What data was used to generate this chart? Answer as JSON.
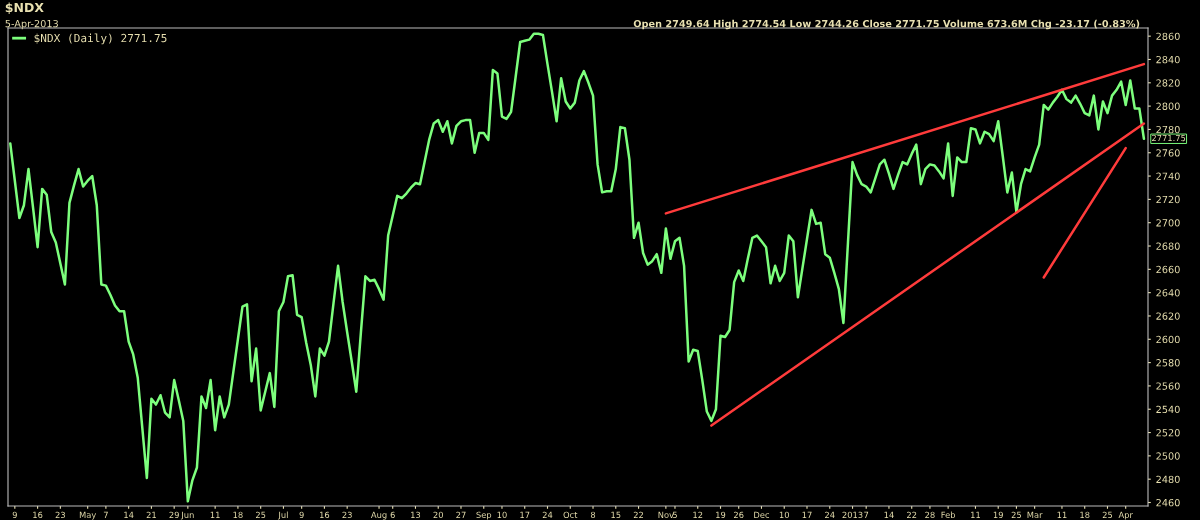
{
  "chart_data": {
    "type": "line",
    "title": "$NDX",
    "subtitle": "5-Apr-2013",
    "annotations": [
      "Open 2749.64 High 2774.54 Low 2744.26 Close 2771.75 Volume 673.6M Chg -23.17 (-0.83%)",
      "2771.75"
    ],
    "ylim": [
      2457,
      2867
    ],
    "yticks": [
      2460,
      2480,
      2500,
      2520,
      2540,
      2560,
      2580,
      2600,
      2620,
      2640,
      2660,
      2680,
      2700,
      2720,
      2740,
      2760,
      2780,
      2800,
      2820,
      2840,
      2860
    ],
    "grid": false,
    "legend": "top left",
    "categories": [
      null,
      "9",
      null,
      null,
      null,
      null,
      "16",
      null,
      null,
      null,
      null,
      "23",
      null,
      null,
      null,
      null,
      null,
      "May",
      null,
      null,
      null,
      "7",
      null,
      null,
      null,
      null,
      "14",
      null,
      null,
      null,
      null,
      "21",
      null,
      null,
      null,
      null,
      "29",
      null,
      null,
      "Jun",
      null,
      null,
      null,
      null,
      null,
      "11",
      null,
      null,
      null,
      null,
      "18",
      null,
      null,
      null,
      null,
      "25",
      null,
      null,
      null,
      null,
      "Jul",
      null,
      null,
      null,
      "9",
      null,
      null,
      null,
      null,
      "16",
      null,
      null,
      null,
      null,
      "23",
      null,
      null,
      null,
      null,
      null,
      null,
      "Aug",
      null,
      null,
      "6",
      null,
      null,
      null,
      null,
      "13",
      null,
      null,
      null,
      null,
      "20",
      null,
      null,
      null,
      null,
      "27",
      null,
      null,
      null,
      null,
      "Sep",
      null,
      null,
      null,
      "10",
      null,
      null,
      null,
      null,
      "17",
      null,
      null,
      null,
      null,
      "24",
      null,
      null,
      null,
      null,
      "Oct",
      null,
      null,
      null,
      null,
      "8",
      null,
      null,
      null,
      null,
      "15",
      null,
      null,
      null,
      null,
      "22",
      null,
      null,
      null,
      null,
      null,
      "Nov",
      null,
      "5",
      null,
      null,
      null,
      null,
      "12",
      null,
      null,
      null,
      null,
      "19",
      null,
      null,
      null,
      "26",
      null,
      null,
      null,
      null,
      "Dec",
      null,
      null,
      null,
      null,
      "10",
      null,
      null,
      null,
      null,
      "17",
      null,
      null,
      null,
      null,
      "24",
      null,
      null,
      null,
      null,
      "2013",
      null,
      null,
      "7",
      null,
      null,
      null,
      null,
      "14",
      null,
      null,
      null,
      null,
      "22",
      null,
      null,
      null,
      "28",
      null,
      null,
      null,
      "Feb",
      null,
      null,
      null,
      null,
      null,
      "11",
      null,
      null,
      null,
      null,
      "19",
      null,
      null,
      null,
      "25",
      null,
      null,
      null,
      "Mar",
      null,
      null,
      null,
      null,
      null,
      "11",
      null,
      null,
      null,
      null,
      "18",
      null,
      null,
      null,
      null,
      "25",
      null,
      null,
      null,
      "Apr",
      null,
      null,
      null,
      null
    ],
    "series": [
      {
        "name": "$NDX (Daily) 2771.75",
        "color": "#7dff7d",
        "values": [
          2768,
          2736,
          2704,
          2715,
          2746,
          2713,
          2679,
          2729,
          2724,
          2692,
          2683,
          2665,
          2647,
          2717,
          2732,
          2746,
          2731,
          2736,
          2740,
          2715,
          2647,
          2646,
          2638,
          2629,
          2624,
          2624,
          2598,
          2587,
          2567,
          2524,
          2481,
          2549,
          2544,
          2552,
          2537,
          2533,
          2565,
          2548,
          2530,
          2461,
          2479,
          2490,
          2551,
          2541,
          2565,
          2522,
          2551,
          2533,
          2544,
          2572,
          2600,
          2628,
          2630,
          2564,
          2592,
          2539,
          2555,
          2571,
          2542,
          2624,
          2632,
          2654,
          2655,
          2621,
          2619,
          2597,
          2578,
          2551,
          2592,
          2586,
          2598,
          2631,
          2663,
          2632,
          2606,
          2581,
          2555,
          2605,
          2654,
          2650,
          2651,
          2643,
          2634,
          2689,
          2706,
          2723,
          2721,
          2725,
          2730,
          2734,
          2733,
          2752,
          2771,
          2785,
          2788,
          2778,
          2787,
          2768,
          2783,
          2787,
          2788,
          2788,
          2760,
          2777,
          2777,
          2771,
          2831,
          2828,
          2791,
          2789,
          2795,
          2825,
          2855,
          2856,
          2857,
          2862,
          2862,
          2861,
          2836,
          2812,
          2787,
          2824,
          2804,
          2798,
          2803,
          2822,
          2830,
          2820,
          2809,
          2750,
          2726,
          2727,
          2727,
          2746,
          2782,
          2781,
          2754,
          2687,
          2700,
          2674,
          2664,
          2667,
          2673,
          2657,
          2695,
          2669,
          2684,
          2687,
          2663,
          2581,
          2591,
          2590,
          2565,
          2538,
          2530,
          2540,
          2603,
          2602,
          2608,
          2649,
          2659,
          2650,
          2669,
          2687,
          2689,
          2684,
          2679,
          2648,
          2663,
          2650,
          2657,
          2689,
          2684,
          2636,
          2661,
          2686,
          2711,
          2699,
          2700,
          2673,
          2670,
          2657,
          2643,
          2614,
          2683,
          2752,
          2741,
          2733,
          2731,
          2726,
          2738,
          2750,
          2754,
          2742,
          2729,
          2741,
          2752,
          2750,
          2759,
          2767,
          2733,
          2746,
          2750,
          2749,
          2744,
          2738,
          2768,
          2723,
          2756,
          2752,
          2752,
          2781,
          2780,
          2768,
          2778,
          2776,
          2770,
          2787,
          2757,
          2726,
          2743,
          2709,
          2733,
          2746,
          2744,
          2756,
          2767,
          2801,
          2797,
          2803,
          2808,
          2814,
          2806,
          2803,
          2809,
          2802,
          2794,
          2792,
          2809,
          2780,
          2804,
          2794,
          2809,
          2814,
          2821,
          2801,
          2822,
          2798,
          2798,
          2772
        ]
      },
      {
        "type": "line",
        "color": "#ff3b3b",
        "values": [
          null,
          null,
          null,
          null,
          null,
          null,
          null,
          null,
          null,
          null,
          null,
          null,
          null,
          null,
          null,
          null,
          null,
          null,
          null,
          null,
          null,
          null,
          null,
          null,
          null,
          null,
          null,
          null,
          null,
          null,
          null,
          null,
          null,
          null,
          null,
          null,
          null,
          null,
          null,
          null,
          null,
          null,
          null,
          null,
          null,
          null,
          null,
          null,
          null,
          null,
          null,
          null,
          null,
          null,
          null,
          null,
          null,
          null,
          null,
          null,
          null,
          null,
          null,
          null,
          null,
          null,
          null,
          null,
          null,
          null,
          null,
          null,
          null,
          null,
          null,
          null,
          null,
          null,
          null,
          null,
          null,
          null,
          null,
          null,
          null,
          null,
          null,
          null,
          null,
          null,
          null,
          null,
          null,
          null,
          null,
          null,
          null,
          null,
          null,
          null,
          null,
          null,
          null,
          null,
          null,
          null,
          null,
          null,
          null,
          null,
          null,
          null,
          null,
          null,
          null,
          null,
          null,
          null,
          null,
          null,
          null,
          null,
          null,
          null,
          null,
          null,
          null,
          null,
          null,
          null,
          null,
          null,
          null,
          null,
          null,
          null,
          null,
          null,
          null,
          null,
          null,
          null,
          null,
          null,
          2708,
          null,
          null,
          null,
          null,
          null,
          null,
          null,
          null,
          null,
          null,
          null,
          null,
          null,
          null,
          null,
          null,
          null,
          null,
          null,
          null,
          null,
          null,
          null,
          null,
          null,
          null,
          null,
          null,
          null,
          null,
          null,
          null,
          null,
          null,
          null,
          null,
          null,
          null,
          null,
          null,
          null,
          null,
          null,
          null,
          null,
          null,
          null,
          null,
          null,
          null,
          null,
          null,
          null,
          null,
          null,
          null,
          null,
          null,
          null,
          null,
          null,
          null,
          null,
          null,
          null,
          null,
          null,
          null,
          null,
          null,
          null,
          null,
          null,
          null,
          null,
          null,
          null,
          null,
          null,
          null,
          null,
          null,
          null,
          null,
          null,
          null,
          null,
          null,
          null,
          null,
          null,
          null,
          null,
          null,
          null,
          null,
          null,
          null,
          null,
          null,
          null,
          null,
          null,
          null,
          2836
        ]
      },
      {
        "type": "line",
        "color": "#ff3b3b",
        "values": [
          null,
          null,
          null,
          null,
          null,
          null,
          null,
          null,
          null,
          null,
          null,
          null,
          null,
          null,
          null,
          null,
          null,
          null,
          null,
          null,
          null,
          null,
          null,
          null,
          null,
          null,
          null,
          null,
          null,
          null,
          null,
          null,
          null,
          null,
          null,
          null,
          null,
          null,
          null,
          null,
          null,
          null,
          null,
          null,
          null,
          null,
          null,
          null,
          null,
          null,
          null,
          null,
          null,
          null,
          null,
          null,
          null,
          null,
          null,
          null,
          null,
          null,
          null,
          null,
          null,
          null,
          null,
          null,
          null,
          null,
          null,
          null,
          null,
          null,
          null,
          null,
          null,
          null,
          null,
          null,
          null,
          null,
          null,
          null,
          null,
          null,
          null,
          null,
          null,
          null,
          null,
          null,
          null,
          null,
          null,
          null,
          null,
          null,
          null,
          null,
          null,
          null,
          null,
          null,
          null,
          null,
          null,
          null,
          null,
          null,
          null,
          null,
          null,
          null,
          null,
          null,
          null,
          null,
          null,
          null,
          null,
          null,
          null,
          null,
          null,
          null,
          null,
          null,
          null,
          null,
          null,
          null,
          null,
          null,
          null,
          null,
          null,
          null,
          null,
          null,
          null,
          null,
          null,
          null,
          null,
          null,
          null,
          null,
          null,
          null,
          null,
          null,
          null,
          null,
          2526,
          null,
          null,
          null,
          null,
          null,
          null,
          null,
          null,
          null,
          null,
          null,
          null,
          null,
          null,
          null,
          null,
          null,
          null,
          null,
          null,
          null,
          null,
          null,
          null,
          null,
          null,
          null,
          null,
          null,
          null,
          null,
          null,
          null,
          null,
          null,
          null,
          null,
          null,
          null,
          null,
          null,
          null,
          null,
          null,
          null,
          null,
          null,
          null,
          null,
          null,
          null,
          null,
          null,
          null,
          null,
          null,
          null,
          null,
          null,
          null,
          null,
          null,
          null,
          null,
          null,
          null,
          null,
          null,
          null,
          null,
          null,
          null,
          null,
          null,
          null,
          null,
          null,
          null,
          null,
          null,
          null,
          null,
          null,
          null,
          null,
          null,
          null,
          null,
          null,
          null,
          null,
          null,
          null,
          null,
          2785
        ]
      },
      {
        "type": "line",
        "color": "#ff3b3b",
        "values": [
          null,
          null,
          null,
          null,
          null,
          null,
          null,
          null,
          null,
          null,
          null,
          null,
          null,
          null,
          null,
          null,
          null,
          null,
          null,
          null,
          null,
          null,
          null,
          null,
          null,
          null,
          null,
          null,
          null,
          null,
          null,
          null,
          null,
          null,
          null,
          null,
          null,
          null,
          null,
          null,
          null,
          null,
          null,
          null,
          null,
          null,
          null,
          null,
          null,
          null,
          null,
          null,
          null,
          null,
          null,
          null,
          null,
          null,
          null,
          null,
          null,
          null,
          null,
          null,
          null,
          null,
          null,
          null,
          null,
          null,
          null,
          null,
          null,
          null,
          null,
          null,
          null,
          null,
          null,
          null,
          null,
          null,
          null,
          null,
          null,
          null,
          null,
          null,
          null,
          null,
          null,
          null,
          null,
          null,
          null,
          null,
          null,
          null,
          null,
          null,
          null,
          null,
          null,
          null,
          null,
          null,
          null,
          null,
          null,
          null,
          null,
          null,
          null,
          null,
          null,
          null,
          null,
          null,
          null,
          null,
          null,
          null,
          null,
          null,
          null,
          null,
          null,
          null,
          null,
          null,
          null,
          null,
          null,
          null,
          null,
          null,
          null,
          null,
          null,
          null,
          null,
          null,
          null,
          null,
          null,
          null,
          null,
          null,
          null,
          null,
          null,
          null,
          null,
          null,
          null,
          null,
          null,
          null,
          null,
          null,
          null,
          null,
          null,
          null,
          null,
          null,
          null,
          null,
          null,
          null,
          null,
          null,
          null,
          null,
          null,
          null,
          null,
          null,
          null,
          null,
          null,
          null,
          null,
          null,
          null,
          null,
          null,
          null,
          null,
          null,
          null,
          null,
          null,
          null,
          null,
          null,
          null,
          null,
          null,
          null,
          null,
          null,
          null,
          null,
          null,
          null,
          null,
          null,
          null,
          null,
          null,
          null,
          null,
          null,
          null,
          null,
          null,
          null,
          null,
          null,
          null,
          null,
          null,
          null,
          null,
          null,
          null,
          2653,
          null,
          null,
          null,
          null,
          null,
          null,
          null,
          null,
          null,
          null,
          null,
          null,
          null,
          null,
          null,
          null,
          null,
          2764,
          null,
          null,
          null,
          null
        ]
      }
    ]
  }
}
